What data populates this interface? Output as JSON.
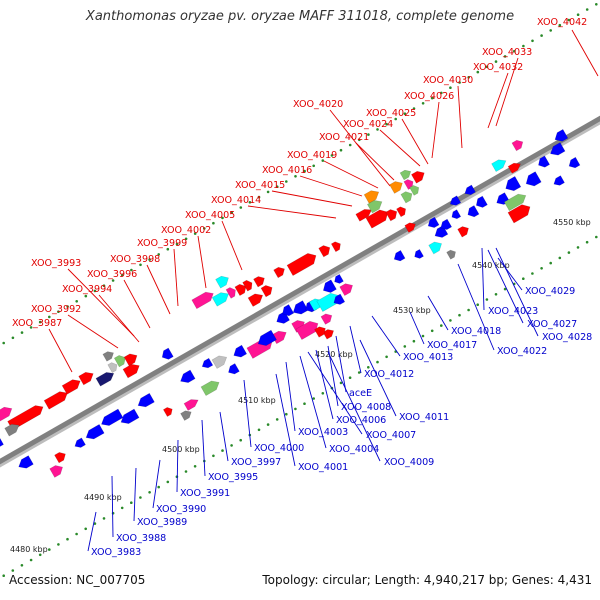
{
  "title": "Xanthomonas oryzae pv. oryzae MAFF 311018, complete genome",
  "footer": {
    "accession": "Accession: NC_007705",
    "summary": "Topology: circular; Length: 4,940,217 bp; Genes: 4,431"
  },
  "colors": {
    "background": "#ffffff",
    "backbone": "#808080",
    "tick_dot": "#2a8a2a",
    "label_upper": "#e00000",
    "label_lower": "#0000cc",
    "feature_palette": [
      "#ff0000",
      "#0000ff",
      "#ff1493",
      "#00ffff",
      "#7fc66a",
      "#808080",
      "#ff8c00",
      "#20b2aa",
      "#c0c0c0",
      "#191970"
    ]
  },
  "scale_labels": [
    "4480 kbp",
    "4490 kbp",
    "4500 kbp",
    "4510 kbp",
    "4520 kbp",
    "4530 kbp",
    "4540 kbp",
    "4550 kbp"
  ],
  "upper_labels": [
    "XOO_4042",
    "XOO_4033",
    "XOO_4032",
    "XOO_4030",
    "XOO_4026",
    "XOO_4025",
    "XOO_4024",
    "XOO_4021",
    "XOO_4020",
    "XOO_4019",
    "XOO_4016",
    "XOO_4015",
    "XOO_4014",
    "XOO_4005",
    "XOO_4002",
    "XOO_3999",
    "XOO_3998",
    "XOO_3996",
    "XOO_3993",
    "XOO_3994",
    "XOO_3992",
    "XOO_3987"
  ],
  "lower_labels": [
    "XOO_4029",
    "XOO_4023",
    "XOO_4027",
    "XOO_4028",
    "XOO_4022",
    "XOO_4018",
    "XOO_4017",
    "XOO_4013",
    "XOO_4012",
    "aceE",
    "XOO_4008",
    "XOO_4011",
    "XOO_4006",
    "XOO_4007",
    "XOO_4003",
    "XOO_4004",
    "XOO_4009",
    "XOO_4000",
    "XOO_4001",
    "XOO_3997",
    "XOO_3995",
    "XOO_3991",
    "XOO_3990",
    "XOO_3989",
    "XOO_3988",
    "XOO_3983"
  ]
}
